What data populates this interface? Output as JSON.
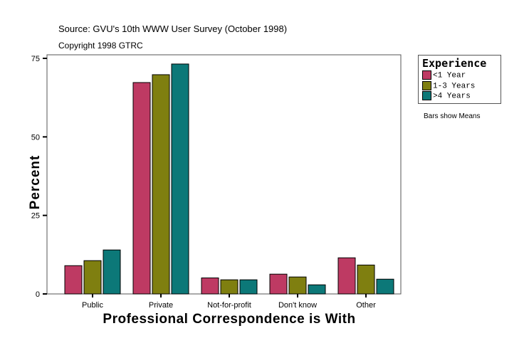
{
  "header": {
    "source": "Source: GVU's 10th WWW User Survey (October 1998)",
    "copyright": "Copyright 1998 GTRC"
  },
  "note": "Bars show Means",
  "chart_data": {
    "type": "bar",
    "title": "",
    "xlabel": "Professional Correspondence is With",
    "ylabel": "Percent",
    "categories": [
      "Public",
      "Private",
      "Not-for-profit",
      "Don't know",
      "Other"
    ],
    "ylim": [
      0,
      75
    ],
    "yticks": [
      0,
      25,
      50,
      75
    ],
    "grid": false,
    "legend": {
      "title": "Experience",
      "placement": "right"
    },
    "series": [
      {
        "name": "<1 Year",
        "color": "#BE3A63",
        "values": [
          9.0,
          67.3,
          5.1,
          6.3,
          11.5
        ]
      },
      {
        "name": "1-3 Years",
        "color": "#7F7F10",
        "values": [
          10.6,
          69.8,
          4.5,
          5.4,
          9.2
        ]
      },
      {
        "name": ">4 Years",
        "color": "#0C7878",
        "values": [
          14.0,
          73.2,
          4.5,
          2.9,
          4.7
        ]
      }
    ]
  }
}
